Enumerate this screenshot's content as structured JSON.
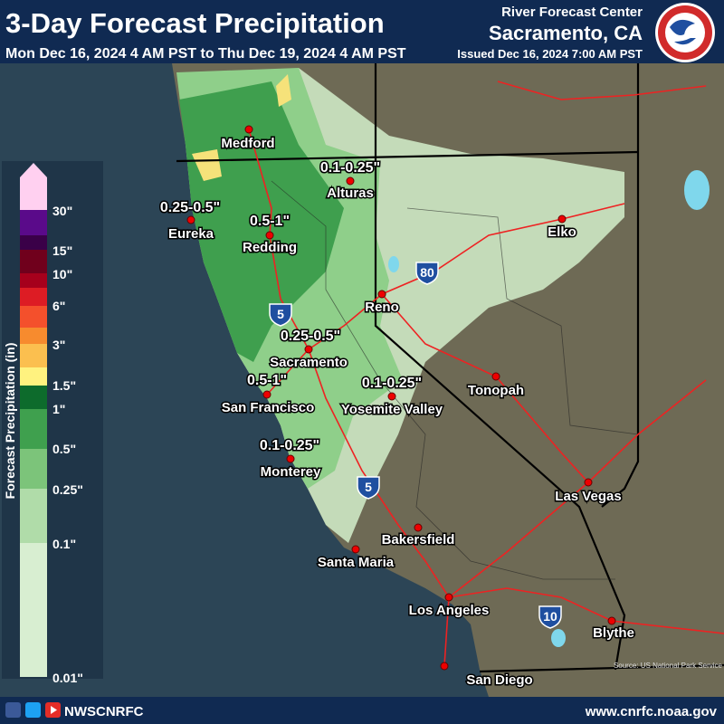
{
  "header": {
    "title": "3-Day Forecast Precipitation",
    "subtitle": "Mon Dec 16, 2024 4 AM PST to Thu Dec 19, 2024 4 AM PST",
    "office": "River Forecast Center",
    "location": "Sacramento, CA",
    "issued": "Issued Dec 16, 2024 7:00 AM PST"
  },
  "legend": {
    "title": "Forecast Precipitation (in)",
    "labels": [
      "30\"",
      "15\"",
      "10\"",
      "6\"",
      "3\"",
      "1.5\"",
      "1\"",
      "0.5\"",
      "0.25\"",
      "0.1\"",
      "0.01\""
    ]
  },
  "map": {
    "cities": [
      "Medford",
      "Alturas",
      "Eureka",
      "Redding",
      "Elko",
      "Reno",
      "Sacramento",
      "San Francisco",
      "Yosemite Valley",
      "Tonopah",
      "Monterey",
      "Las Vegas",
      "Bakersfield",
      "Santa Maria",
      "Los Angeles",
      "Blythe",
      "San Diego"
    ],
    "amounts": [
      "0.1-0.25\"",
      "0.25-0.5\"",
      "0.5-1\"",
      "0.25-0.5\"",
      "0.5-1\"",
      "0.1-0.25\"",
      "0.1-0.25\""
    ],
    "shields": [
      "5",
      "80",
      "5",
      "10"
    ],
    "source": "Source: US National Park Service"
  },
  "footer": {
    "handle": "NWSCNRFC",
    "url": "www.cnrfc.noaa.gov"
  }
}
